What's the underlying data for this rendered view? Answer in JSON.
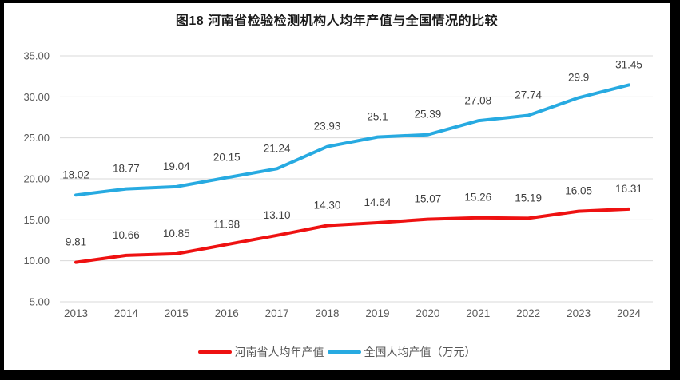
{
  "title": "图18  河南省检验检测机构人均年产值与全国情况的比较",
  "chart_data": {
    "type": "line",
    "title": "图18  河南省检验检测机构人均年产值与全国情况的比较",
    "x": [
      "2013",
      "2014",
      "2015",
      "2016",
      "2017",
      "2018",
      "2019",
      "2020",
      "2021",
      "2022",
      "2023",
      "2024"
    ],
    "series": [
      {
        "name": "河南省人均年产值",
        "color": "#ee1111",
        "values": [
          9.81,
          10.66,
          10.85,
          11.98,
          13.1,
          14.3,
          14.64,
          15.07,
          15.26,
          15.19,
          16.05,
          16.31
        ],
        "labels": [
          "9.81",
          "10.66",
          "10.85",
          "11.98",
          "13.10",
          "14.30",
          "14.64",
          "15.07",
          "15.26",
          "15.19",
          "16.05",
          "16.31"
        ]
      },
      {
        "name": "全国人均产值（万元）",
        "color": "#27aae1",
        "values": [
          18.02,
          18.77,
          19.04,
          20.15,
          21.24,
          23.93,
          25.1,
          25.39,
          27.08,
          27.74,
          29.9,
          31.45
        ],
        "labels": [
          "18.02",
          "18.77",
          "19.04",
          "20.15",
          "21.24",
          "23.93",
          "25.1",
          "25.39",
          "27.08",
          "27.74",
          "29.9",
          "31.45"
        ]
      }
    ],
    "ylim": [
      5,
      35
    ],
    "yticks": [
      35,
      30,
      25,
      20,
      15,
      10,
      5
    ],
    "ytick_labels": [
      "35.00",
      "30.00",
      "25.00",
      "20.00",
      "15.00",
      "10.00",
      "5.00"
    ],
    "xlabel": "",
    "ylabel": "",
    "grid": true,
    "legend_position": "bottom",
    "colors": {
      "grid": "#d9d9d9",
      "axis_text": "#595959",
      "data_label_text": "#404040",
      "frame_border": "#000000",
      "background": "#ffffff"
    }
  },
  "legend": {
    "items": [
      {
        "label": "河南省人均年产值",
        "color": "#ee1111"
      },
      {
        "label": "全国人均产值（万元）",
        "color": "#27aae1"
      }
    ]
  }
}
